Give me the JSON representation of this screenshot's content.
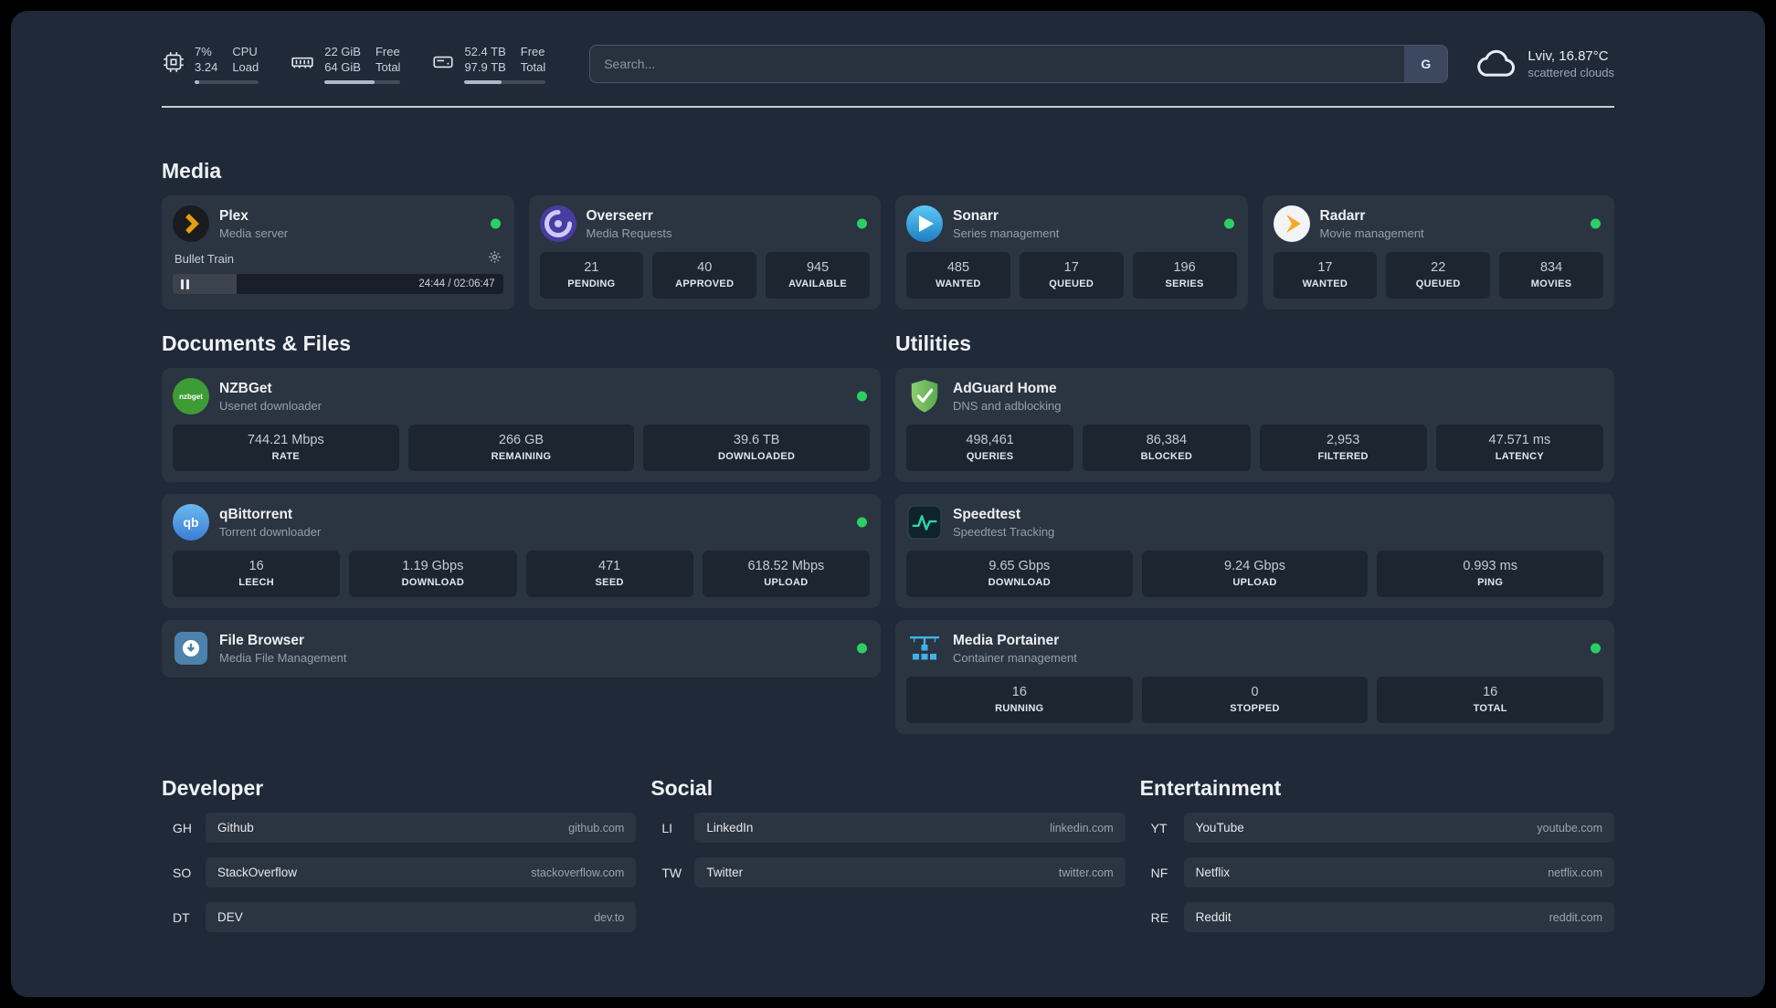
{
  "topbar": {
    "cpu": {
      "value_pct": "7%",
      "value_load": "3.24",
      "label_top": "CPU",
      "label_bottom": "Load",
      "bar": 7
    },
    "memory": {
      "free": "22 GiB",
      "total": "64 GiB",
      "label_free": "Free",
      "label_total": "Total",
      "bar": 66
    },
    "disk": {
      "free": "52.4 TB",
      "total": "97.9 TB",
      "label_free": "Free",
      "label_total": "Total",
      "bar": 46
    },
    "search": {
      "placeholder": "Search...",
      "provider": "G"
    },
    "weather": {
      "title": "Lviv, 16.87°C",
      "subtitle": "scattered clouds"
    }
  },
  "sections": {
    "media": {
      "title": "Media",
      "cards": [
        {
          "name": "Plex",
          "desc": "Media server",
          "player": {
            "track": "Bullet Train",
            "time": "24:44 / 02:06:47",
            "progress": 19.5
          }
        },
        {
          "name": "Overseerr",
          "desc": "Media Requests",
          "stats": [
            {
              "value": "21",
              "label": "PENDING"
            },
            {
              "value": "40",
              "label": "APPROVED"
            },
            {
              "value": "945",
              "label": "AVAILABLE"
            }
          ]
        },
        {
          "name": "Sonarr",
          "desc": "Series management",
          "stats": [
            {
              "value": "485",
              "label": "WANTED"
            },
            {
              "value": "17",
              "label": "QUEUED"
            },
            {
              "value": "196",
              "label": "SERIES"
            }
          ]
        },
        {
          "name": "Radarr",
          "desc": "Movie management",
          "stats": [
            {
              "value": "17",
              "label": "WANTED"
            },
            {
              "value": "22",
              "label": "QUEUED"
            },
            {
              "value": "834",
              "label": "MOVIES"
            }
          ]
        }
      ]
    },
    "documents": {
      "title": "Documents & Files",
      "cards": [
        {
          "name": "NZBGet",
          "desc": "Usenet downloader",
          "stats": [
            {
              "value": "744.21 Mbps",
              "label": "RATE"
            },
            {
              "value": "266 GB",
              "label": "REMAINING"
            },
            {
              "value": "39.6 TB",
              "label": "DOWNLOADED"
            }
          ]
        },
        {
          "name": "qBittorrent",
          "desc": "Torrent downloader",
          "stats": [
            {
              "value": "16",
              "label": "LEECH"
            },
            {
              "value": "1.19 Gbps",
              "label": "DOWNLOAD"
            },
            {
              "value": "471",
              "label": "SEED"
            },
            {
              "value": "618.52 Mbps",
              "label": "UPLOAD"
            }
          ]
        },
        {
          "name": "File Browser",
          "desc": "Media File Management"
        }
      ]
    },
    "utilities": {
      "title": "Utilities",
      "cards": [
        {
          "name": "AdGuard Home",
          "desc": "DNS and adblocking",
          "stats": [
            {
              "value": "498,461",
              "label": "QUERIES"
            },
            {
              "value": "86,384",
              "label": "BLOCKED"
            },
            {
              "value": "2,953",
              "label": "FILTERED"
            },
            {
              "value": "47.571 ms",
              "label": "LATENCY"
            }
          ]
        },
        {
          "name": "Speedtest",
          "desc": "Speedtest Tracking",
          "stats": [
            {
              "value": "9.65 Gbps",
              "label": "DOWNLOAD"
            },
            {
              "value": "9.24 Gbps",
              "label": "UPLOAD"
            },
            {
              "value": "0.993 ms",
              "label": "PING"
            }
          ]
        },
        {
          "name": "Media Portainer",
          "desc": "Container management",
          "stats": [
            {
              "value": "16",
              "label": "RUNNING"
            },
            {
              "value": "0",
              "label": "STOPPED"
            },
            {
              "value": "16",
              "label": "TOTAL"
            }
          ]
        }
      ]
    }
  },
  "bookmarks": {
    "developer": {
      "title": "Developer",
      "items": [
        {
          "abbr": "GH",
          "name": "Github",
          "domain": "github.com"
        },
        {
          "abbr": "SO",
          "name": "StackOverflow",
          "domain": "stackoverflow.com"
        },
        {
          "abbr": "DT",
          "name": "DEV",
          "domain": "dev.to"
        }
      ]
    },
    "social": {
      "title": "Social",
      "items": [
        {
          "abbr": "LI",
          "name": "LinkedIn",
          "domain": "linkedin.com"
        },
        {
          "abbr": "TW",
          "name": "Twitter",
          "domain": "twitter.com"
        }
      ]
    },
    "entertainment": {
      "title": "Entertainment",
      "items": [
        {
          "abbr": "YT",
          "name": "YouTube",
          "domain": "youtube.com"
        },
        {
          "abbr": "NF",
          "name": "Netflix",
          "domain": "netflix.com"
        },
        {
          "abbr": "RE",
          "name": "Reddit",
          "domain": "reddit.com"
        }
      ]
    }
  },
  "colors": {
    "status_green": "#2bd063",
    "plex_gold": "#e5a00d",
    "accent_blue": "#3eb0e8"
  }
}
